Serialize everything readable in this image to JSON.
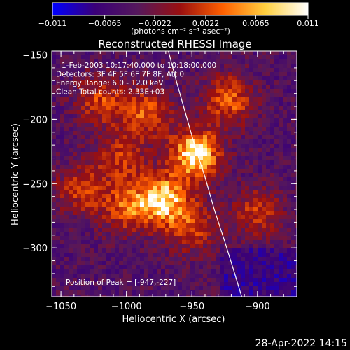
{
  "chart_data": {
    "type": "heatmap",
    "title": "Reconstructed RHESSI Image",
    "xlabel": "Heliocentric X (arcsec)",
    "ylabel": "Heliocentric Y (arcsec)",
    "xlim": [
      -1057,
      -870
    ],
    "ylim": [
      -338,
      -147
    ],
    "x_ticks": [
      -1050,
      -1000,
      -950,
      -900
    ],
    "y_ticks": [
      -150,
      -200,
      -250,
      -300
    ],
    "colorbar": {
      "range": [
        -0.011,
        0.011
      ],
      "ticks": [
        -0.011,
        -0.0065,
        -0.0022,
        0.0022,
        0.0065,
        0.011
      ],
      "tick_labels": [
        "−0.011",
        "−0.0065",
        "−0.0022",
        "0.0022",
        "0.0065",
        "0.011"
      ],
      "unit_label": "(photons cm⁻² s⁻¹ asec⁻²)",
      "colors": [
        "#0000ff",
        "#3a0078",
        "#55185c",
        "#9a1010",
        "#ff6000",
        "#ffd040",
        "#ffffff"
      ]
    },
    "annotations": [
      "1-Feb-2003 10:17:40.000 to 10:18:00.000",
      "Detectors: 3F 4F 5F 6F 7F 8F, Att 0",
      "Energy Range: 6.0 - 12.0 keV",
      "Clean    Total counts: 2.33E+03"
    ],
    "peak_label": "Position of Peak = [-947,-227]",
    "peak": [
      -947,
      -227
    ],
    "sources": [
      {
        "x": -947,
        "y": -227,
        "intensity": 0.011
      },
      {
        "x": -972,
        "y": -262,
        "intensity": 0.0095
      },
      {
        "x": -985,
        "y": -195,
        "intensity": 0.0055
      },
      {
        "x": -922,
        "y": -185,
        "intensity": 0.006
      },
      {
        "x": -1035,
        "y": -255,
        "intensity": 0.004
      },
      {
        "x": -1020,
        "y": -185,
        "intensity": 0.0045
      },
      {
        "x": -900,
        "y": -272,
        "intensity": 0.004
      },
      {
        "x": -950,
        "y": -285,
        "intensity": 0.0045
      },
      {
        "x": -1000,
        "y": -270,
        "intensity": 0.005
      },
      {
        "x": -1005,
        "y": -230,
        "intensity": 0.004
      }
    ],
    "limb_curve": {
      "x": [
        -968,
        -962,
        -955,
        -948,
        -940,
        -933,
        -925,
        -918,
        -912
      ],
      "y": [
        -147,
        -170,
        -195,
        -220,
        -245,
        -270,
        -295,
        -318,
        -338
      ]
    }
  },
  "footer": {
    "timestamp": "28-Apr-2022 14:15"
  }
}
